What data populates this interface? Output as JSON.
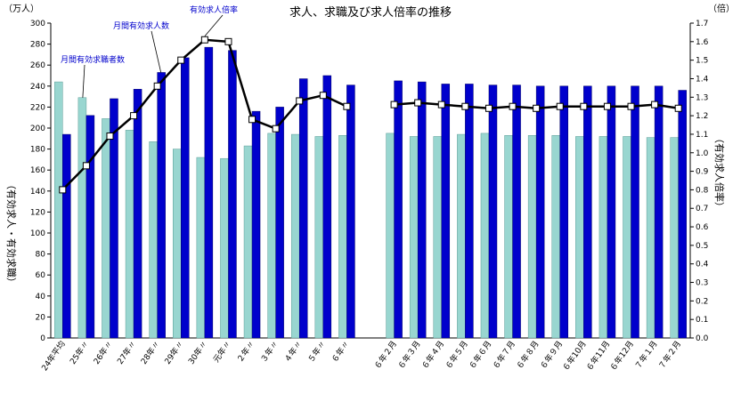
{
  "chart_data": {
    "type": "bar",
    "title": "求人、求職及び求人倍率の推移",
    "left_unit": "（万人）",
    "right_unit": "（倍）",
    "ylabel": "（有効求人・有効求職）",
    "y2label": "（有効求人倍率）",
    "ylim": [
      0,
      300
    ],
    "y2lim": [
      0.0,
      1.7
    ],
    "yticks": [
      "0",
      "20",
      "40",
      "60",
      "80",
      "100",
      "120",
      "140",
      "160",
      "180",
      "200",
      "220",
      "240",
      "260",
      "280",
      "300"
    ],
    "y2ticks": [
      "0.0",
      "0.1",
      "0.2",
      "0.3",
      "0.4",
      "0.5",
      "0.6",
      "0.7",
      "0.8",
      "0.9",
      "1.0",
      "1.1",
      "1.2",
      "1.3",
      "1.4",
      "1.5",
      "1.6",
      "1.7"
    ],
    "categories": [
      "24年平均",
      "25年〃",
      "26年〃",
      "27年〃",
      "28年〃",
      "29年〃",
      "30年〃",
      "元年〃",
      "２年〃",
      "３年〃",
      "４年〃",
      "５年〃",
      "６年〃",
      "",
      "６年２月",
      "６年３月",
      "６年４月",
      "６年５月",
      "６年６月",
      "６年７月",
      "６年８月",
      "６年９月",
      "６年10月",
      "６年11月",
      "６年12月",
      "７年１月",
      "７年２月"
    ],
    "series": [
      {
        "name": "月間有効求職者数",
        "kind": "bar",
        "color": "#99d6d0",
        "values": [
          244,
          229,
          209,
          198,
          187,
          180,
          172,
          171,
          183,
          195,
          194,
          192,
          193,
          null,
          195,
          192,
          192,
          194,
          195,
          193,
          193,
          193,
          192,
          192,
          192,
          191,
          191
        ]
      },
      {
        "name": "月間有効求人数",
        "kind": "bar",
        "color": "#0000cc",
        "values": [
          194,
          212,
          228,
          237,
          253,
          267,
          277,
          274,
          216,
          220,
          247,
          250,
          241,
          null,
          245,
          244,
          242,
          242,
          241,
          241,
          240,
          240,
          240,
          240,
          240,
          240,
          236
        ]
      },
      {
        "name": "有効求人倍率",
        "kind": "line",
        "axis": "right",
        "color": "#000000",
        "values": [
          0.8,
          0.93,
          1.09,
          1.2,
          1.36,
          1.5,
          1.61,
          1.6,
          1.18,
          1.13,
          1.28,
          1.31,
          1.25,
          null,
          1.26,
          1.27,
          1.26,
          1.25,
          1.24,
          1.25,
          1.24,
          1.25,
          1.25,
          1.25,
          1.25,
          1.26,
          1.24
        ]
      }
    ],
    "grid": false,
    "legend": "callouts"
  }
}
